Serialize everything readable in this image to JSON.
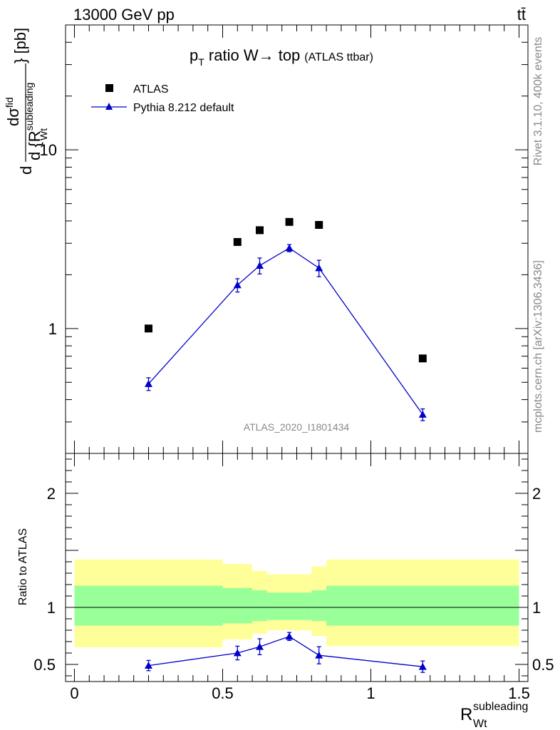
{
  "header": {
    "left": "13000 GeV pp",
    "right": "tt̄"
  },
  "side": {
    "rivet": "Rivet 3.1.10,  400k events",
    "mcplots": "mcplots.cern.ch [arXiv:1306.3436]"
  },
  "main_plot": {
    "title_main": "p",
    "title_sub": "T",
    "title_rest": " ratio W→ top",
    "title_small": "(ATLAS ttbar)",
    "watermark": "ATLAS_2020_I1801434",
    "ylabel_d": "d",
    "ylabel_dsigma": "dσ",
    "ylabel_sup": "fid",
    "ylabel_den": "d {R",
    "ylabel_den_sup": "subleading",
    "ylabel_den_sub": "Wt",
    "ylabel_den_close": "} [pb]"
  },
  "ratio_plot": {
    "ylabel": "Ratio to ATLAS"
  },
  "xaxis": {
    "label_main": "R",
    "label_sup": "subleading",
    "label_sub": "Wt"
  },
  "colors": {
    "mc": "#0000cc",
    "data": "#000000",
    "band_inner": "#99ff99",
    "band_outer": "#ffff99"
  },
  "chart_data": [
    {
      "type": "scatter",
      "name": "main",
      "log_y": true,
      "xlim": [
        -0.03,
        1.53
      ],
      "ylim": [
        0.2,
        50
      ],
      "yticks": [
        1,
        10
      ],
      "ytick_labels": [
        "1",
        "10"
      ],
      "legend_placement": "top-left",
      "series": [
        {
          "name": "ATLAS",
          "marker": "square",
          "x": [
            0.25,
            0.55,
            0.625,
            0.725,
            0.825,
            1.175
          ],
          "y": [
            1.0,
            3.05,
            3.55,
            3.95,
            3.8,
            0.68
          ]
        },
        {
          "name": "Pythia 8.212 default",
          "marker": "triangle",
          "x": [
            0.25,
            0.55,
            0.625,
            0.725,
            0.825,
            1.175
          ],
          "y": [
            0.49,
            1.75,
            2.25,
            2.82,
            2.18,
            0.33
          ],
          "err_up": [
            0.04,
            0.15,
            0.23,
            0.13,
            0.23,
            0.025
          ],
          "err_down": [
            0.04,
            0.15,
            0.23,
            0.13,
            0.23,
            0.025
          ]
        }
      ]
    },
    {
      "type": "scatter",
      "name": "ratio",
      "xlim": [
        -0.03,
        1.53
      ],
      "ylim": [
        0.35,
        2.35
      ],
      "yticks": [
        0.5,
        1,
        2
      ],
      "ytick_labels": [
        "0.5",
        "1",
        "2"
      ],
      "xticks": [
        0,
        0.5,
        1,
        1.5
      ],
      "xtick_labels": [
        "0",
        "0.5",
        "1",
        "1.5"
      ],
      "bands": [
        {
          "x0": 0.0,
          "x1": 0.5,
          "inner": [
            0.84,
            1.19
          ],
          "outer": [
            0.65,
            1.42
          ]
        },
        {
          "x0": 0.5,
          "x1": 0.6,
          "inner": [
            0.86,
            1.17
          ],
          "outer": [
            0.72,
            1.38
          ]
        },
        {
          "x0": 0.6,
          "x1": 0.65,
          "inner": [
            0.88,
            1.15
          ],
          "outer": [
            0.77,
            1.32
          ]
        },
        {
          "x0": 0.65,
          "x1": 0.8,
          "inner": [
            0.89,
            1.13
          ],
          "outer": [
            0.8,
            1.29
          ]
        },
        {
          "x0": 0.8,
          "x1": 0.85,
          "inner": [
            0.88,
            1.15
          ],
          "outer": [
            0.75,
            1.36
          ]
        },
        {
          "x0": 0.85,
          "x1": 1.5,
          "inner": [
            0.84,
            1.19
          ],
          "outer": [
            0.66,
            1.42
          ]
        }
      ],
      "series": [
        {
          "name": "Pythia 8.212 default",
          "x": [
            0.25,
            0.55,
            0.625,
            0.725,
            0.825,
            1.175
          ],
          "y": [
            0.49,
            0.6,
            0.655,
            0.745,
            0.58,
            0.48
          ],
          "err_up": [
            0.045,
            0.06,
            0.07,
            0.035,
            0.075,
            0.05
          ],
          "err_down": [
            0.045,
            0.06,
            0.07,
            0.035,
            0.075,
            0.05
          ]
        }
      ]
    }
  ]
}
